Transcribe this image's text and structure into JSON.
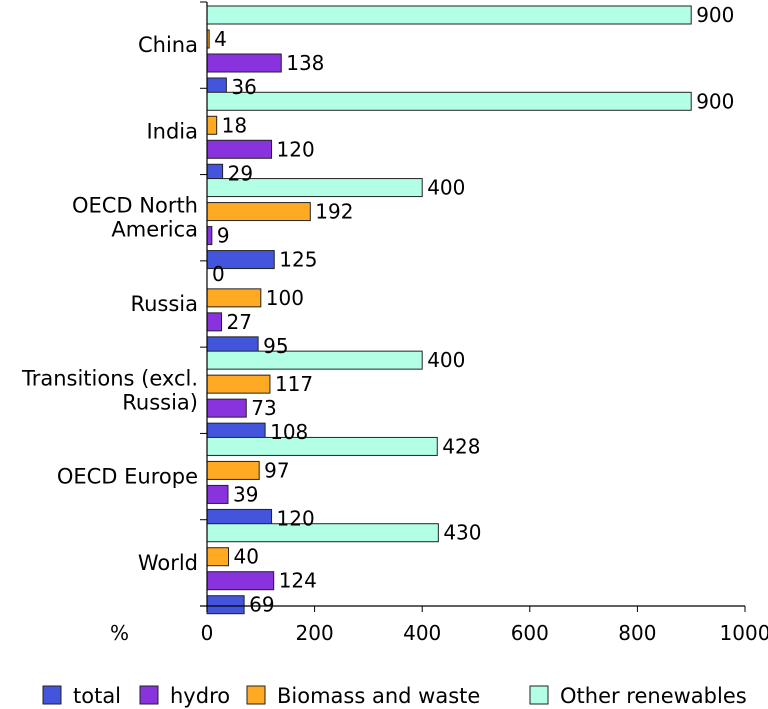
{
  "chart_data": {
    "type": "bar",
    "orientation": "horizontal",
    "categories": [
      "China",
      "India",
      "OECD North America",
      "Russia",
      "Transitions (excl. Russia)",
      "OECD Europe",
      "World"
    ],
    "category_lines": [
      [
        "China"
      ],
      [
        "India"
      ],
      [
        "OECD North",
        "America"
      ],
      [
        "Russia"
      ],
      [
        "Transitions (excl.",
        "Russia)"
      ],
      [
        "OECD Europe"
      ],
      [
        "World"
      ]
    ],
    "series": [
      {
        "name": "Other renewables",
        "color": "#b3ffe6",
        "values": [
          900,
          900,
          400,
          0,
          400,
          428,
          430
        ]
      },
      {
        "name": "Biomass and waste",
        "color": "#ffaa22",
        "values": [
          4,
          18,
          192,
          100,
          117,
          97,
          40
        ]
      },
      {
        "name": "hydro",
        "color": "#8833dd",
        "values": [
          138,
          120,
          9,
          27,
          73,
          39,
          124
        ]
      },
      {
        "name": "total",
        "color": "#4455dd",
        "values": [
          36,
          29,
          125,
          95,
          108,
          120,
          69
        ]
      }
    ],
    "legend_order": [
      "total",
      "hydro",
      "Biomass and waste",
      "Other renewables"
    ],
    "x_ticks": [
      0,
      200,
      400,
      600,
      800,
      1000
    ],
    "xlim": [
      0,
      1000
    ],
    "xlabel": "%",
    "legend_position": "bottom",
    "grid": false
  }
}
